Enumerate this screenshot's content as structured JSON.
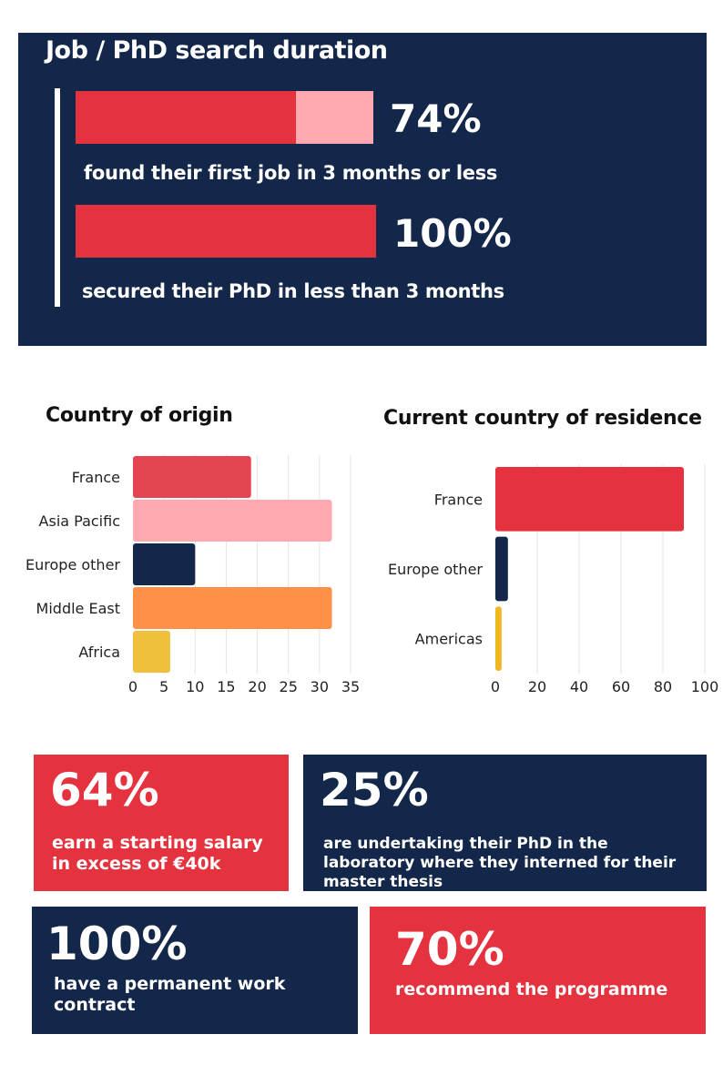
{
  "search_duration": {
    "title": "Job / PhD search duration",
    "items": [
      {
        "percent": 74,
        "value_label": "74%",
        "caption": "found their first job in 3 months or less"
      },
      {
        "percent": 100,
        "value_label": "100%",
        "caption": "secured their PhD in less than 3 months"
      }
    ]
  },
  "chart_data": [
    {
      "type": "bar",
      "orientation": "horizontal",
      "title": "Country of origin",
      "categories": [
        "France",
        "Asia Pacific",
        "Europe other",
        "Middle East",
        "Africa"
      ],
      "values": [
        19,
        32,
        10,
        32,
        6
      ],
      "colors": [
        "#e54452",
        "#ffa8b0",
        "#13274a",
        "#ff9048",
        "#f0c03c"
      ],
      "xlim": [
        0,
        35
      ],
      "xticks": [
        "0",
        "5",
        "10",
        "15",
        "20",
        "25",
        "30",
        "35"
      ],
      "grid": true
    },
    {
      "type": "bar",
      "orientation": "horizontal",
      "title": "Current country of residence",
      "categories": [
        "France",
        "Europe other",
        "Americas"
      ],
      "values": [
        90,
        6,
        3
      ],
      "colors": [
        "#e5323f",
        "#13274a",
        "#f0b820"
      ],
      "xlim": [
        0,
        100
      ],
      "xticks": [
        "0",
        "20",
        "40",
        "60",
        "80",
        "100"
      ],
      "grid": true
    }
  ],
  "stats": [
    {
      "value": "64%",
      "text": "earn a starting salary in excess of €40k"
    },
    {
      "value": "25%",
      "text": "are undertaking their PhD in the laboratory where they interned for their master thesis"
    },
    {
      "value": "100%",
      "text": "have a permanent work contract"
    },
    {
      "value": "70%",
      "text": "recommend the programme"
    }
  ],
  "colors": {
    "navy": "#13274a",
    "red": "#e5323f",
    "pink": "#ffa8b0"
  }
}
